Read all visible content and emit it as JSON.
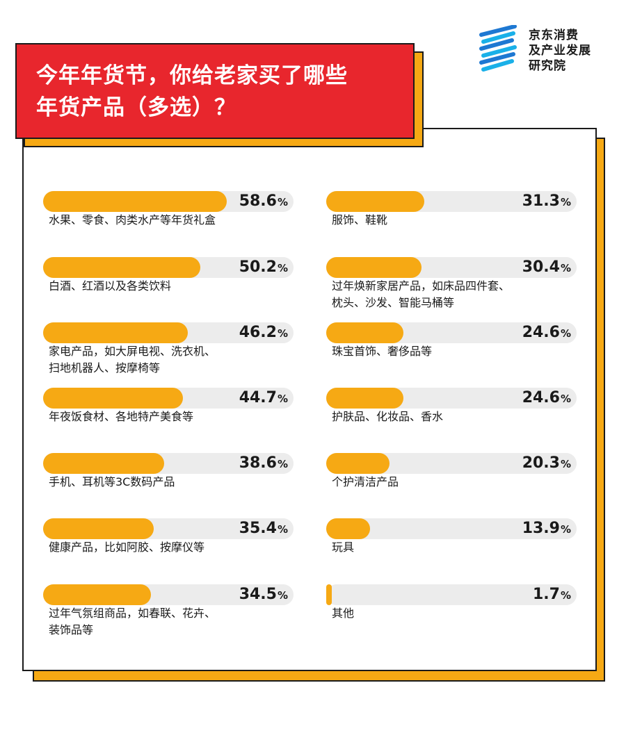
{
  "brand": {
    "lines": [
      "京东消费",
      "及产业发展",
      "研究院"
    ],
    "colors": [
      "#1e78d2",
      "#1ab0e8"
    ]
  },
  "title": {
    "line1": "今年年货节，你给老家买了哪些",
    "line2": "年货产品（多选）？"
  },
  "colors": {
    "accent": "#f6a914",
    "title_bg": "#e8262d",
    "track": "#ececec"
  },
  "chart_data": {
    "type": "bar",
    "unit": "%",
    "categories": [
      "水果、零食、肉类水产等年货礼盒",
      "白酒、红酒以及各类饮料",
      "家电产品，如大屏电视、洗衣机、\n扫地机器人、按摩椅等",
      "年夜饭食材、各地特产美食等",
      "手机、耳机等3C数码产品",
      "健康产品，比如阿胶、按摩仪等",
      "过年气氛组商品，如春联、花卉、\n装饰品等",
      "服饰、鞋靴",
      "过年焕新家居产品，如床品四件套、\n枕头、沙发、智能马桶等",
      "珠宝首饰、奢侈品等",
      "护肤品、化妆品、香水",
      "个护清洁产品",
      "玩具",
      "其他"
    ],
    "values": [
      58.6,
      50.2,
      46.2,
      44.7,
      38.6,
      35.4,
      34.5,
      31.3,
      30.4,
      24.6,
      24.6,
      20.3,
      13.9,
      1.7
    ],
    "ylim": [
      0,
      80
    ]
  }
}
